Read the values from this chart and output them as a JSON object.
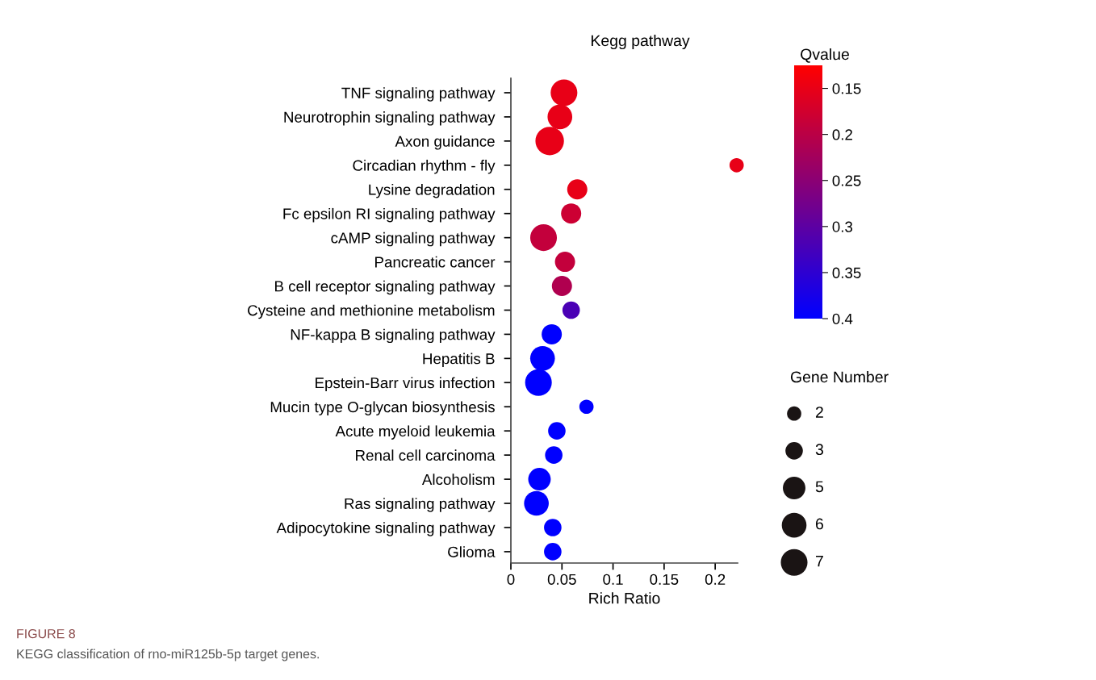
{
  "chart_data": {
    "type": "bubble",
    "title": "Kegg pathway",
    "xlabel": "Rich Ratio",
    "clabel": "Qvalue",
    "legend_title": "Gene Number",
    "categories": [
      "TNF signaling pathway",
      "Neurotrophin signaling pathway",
      "Axon guidance",
      "Circadian rhythm - fly",
      "Lysine degradation",
      "Fc epsilon RI signaling pathway",
      "cAMP signaling pathway",
      "Pancreatic cancer",
      "B cell receptor signaling pathway",
      "Cysteine and methionine metabolism",
      "NF-kappa B signaling pathway",
      "Hepatitis B",
      "Epstein-Barr virus infection",
      "Mucin type O-glycan biosynthesis",
      "Acute myeloid leukemia",
      "Renal cell carcinoma",
      "Alcoholism",
      "Ras signaling pathway",
      "Adipocytokine signaling pathway",
      "Glioma"
    ],
    "orientation": "horizontal",
    "values": [
      0.052,
      0.048,
      0.038,
      0.221,
      0.065,
      0.059,
      0.032,
      0.053,
      0.05,
      0.059,
      0.04,
      0.031,
      0.027,
      0.074,
      0.045,
      0.042,
      0.028,
      0.025,
      0.041,
      0.041
    ],
    "sizes": [
      7,
      6,
      8,
      2,
      4,
      4,
      7,
      4,
      4,
      3,
      4,
      6,
      7,
      2,
      3,
      3,
      5,
      6,
      3,
      3
    ],
    "cvalues": [
      0.15,
      0.15,
      0.15,
      0.15,
      0.15,
      0.18,
      0.19,
      0.19,
      0.21,
      0.32,
      0.4,
      0.4,
      0.4,
      0.4,
      0.4,
      0.4,
      0.4,
      0.4,
      0.4,
      0.4
    ],
    "size_legend": [
      2,
      3,
      5,
      6,
      7
    ],
    "clim": [
      0.4,
      0.125
    ],
    "cticks": [
      0.15,
      0.2,
      0.25,
      0.3,
      0.35,
      0.4
    ],
    "xlim": [
      0,
      0.222
    ],
    "xticks": [
      0,
      0.05,
      0.1,
      0.15,
      0.2
    ],
    "grid": false,
    "annotations": [
      "FIGURE 8",
      "KEGG classification of rno-miR125b-5p target genes."
    ]
  }
}
